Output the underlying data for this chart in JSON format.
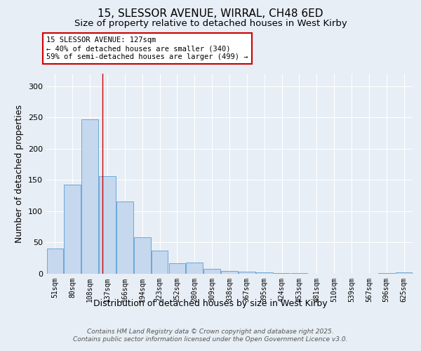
{
  "title1": "15, SLESSOR AVENUE, WIRRAL, CH48 6ED",
  "title2": "Size of property relative to detached houses in West Kirby",
  "xlabel": "Distribution of detached houses by size in West Kirby",
  "ylabel": "Number of detached properties",
  "categories": [
    "51sqm",
    "80sqm",
    "108sqm",
    "137sqm",
    "166sqm",
    "194sqm",
    "223sqm",
    "252sqm",
    "280sqm",
    "309sqm",
    "338sqm",
    "367sqm",
    "395sqm",
    "424sqm",
    "453sqm",
    "481sqm",
    "510sqm",
    "539sqm",
    "567sqm",
    "596sqm",
    "625sqm"
  ],
  "values": [
    40,
    143,
    247,
    156,
    116,
    58,
    37,
    17,
    18,
    8,
    5,
    3,
    2,
    1,
    1,
    0,
    0,
    0,
    0,
    1,
    2
  ],
  "bar_color": "#c5d8ee",
  "bar_edge_color": "#5a9fd4",
  "background_color": "#e8eef5",
  "grid_color": "#ffffff",
  "red_line_x": 2.72,
  "annotation_text": "15 SLESSOR AVENUE: 127sqm\n← 40% of detached houses are smaller (340)\n59% of semi-detached houses are larger (499) →",
  "annotation_box_color": "#ffffff",
  "annotation_border_color": "#cc0000",
  "footer1": "Contains HM Land Registry data © Crown copyright and database right 2025.",
  "footer2": "Contains public sector information licensed under the Open Government Licence v3.0.",
  "ylim": [
    0,
    320
  ],
  "title1_fontsize": 11,
  "title2_fontsize": 9.5,
  "tick_fontsize": 7,
  "ylabel_fontsize": 9,
  "xlabel_fontsize": 9,
  "footer_fontsize": 6.5
}
